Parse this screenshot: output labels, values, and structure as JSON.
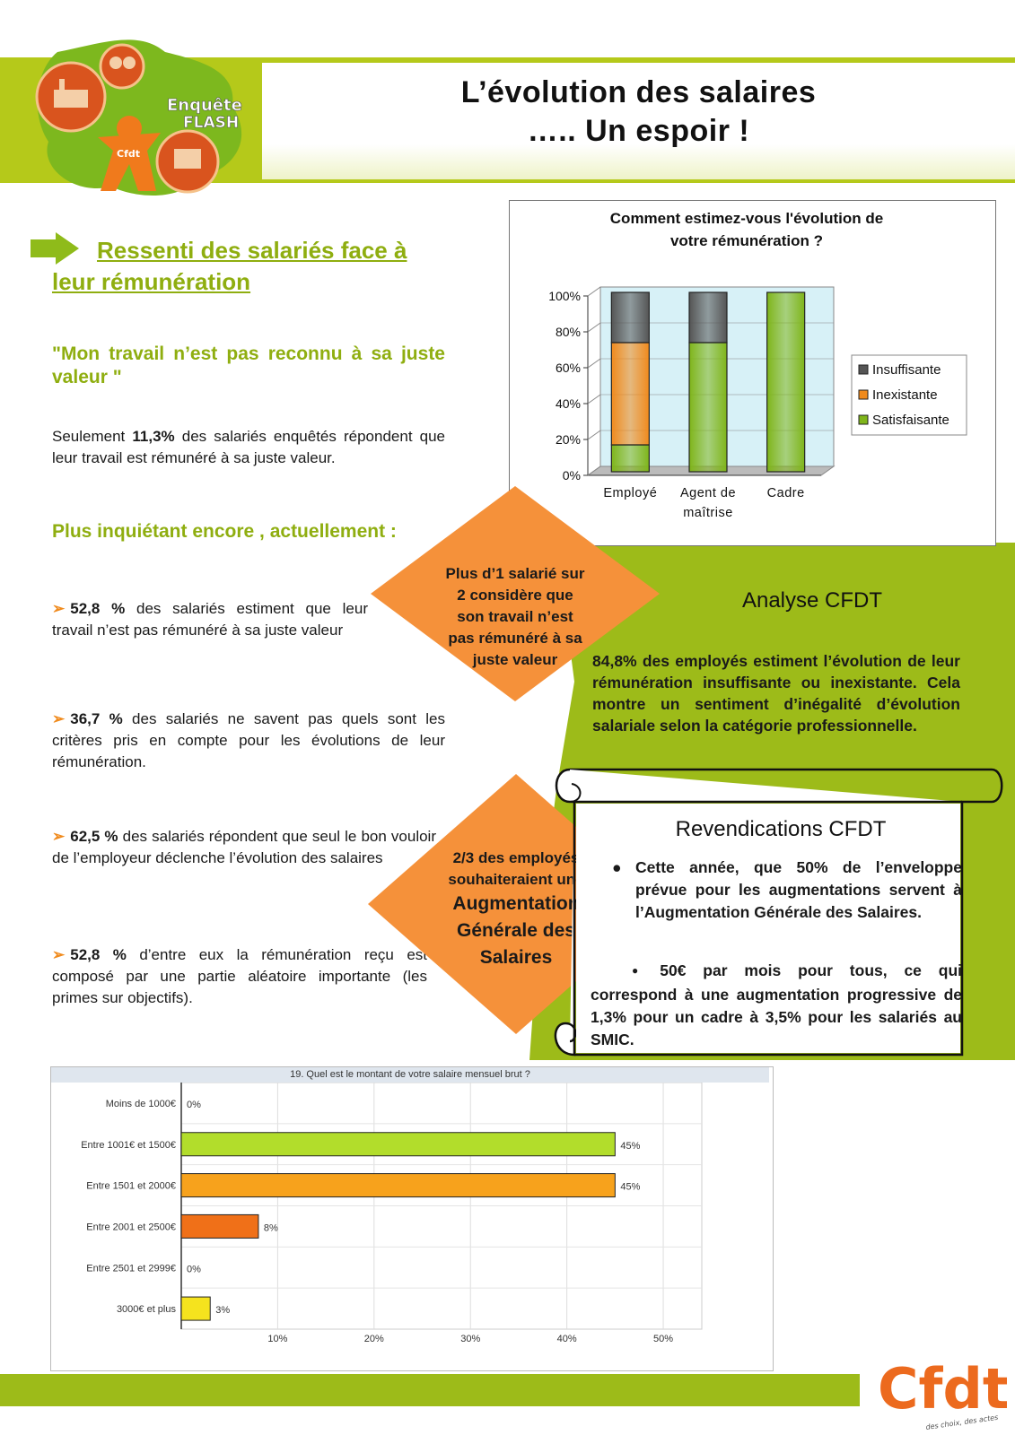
{
  "header": {
    "title_line1": "L’évolution des salaires",
    "title_line2": "….. Un espoir  !",
    "logo_text_top": "Enquête",
    "logo_text_bottom": "FLASH",
    "logo_small": "Cfdt"
  },
  "colors": {
    "brand_green": "#9dbb19",
    "text_green": "#8fae10",
    "orange": "#f5913a",
    "accent_orange": "#f08a1c"
  },
  "left": {
    "section_title": "Ressenti des salariés face à leur rémunération",
    "quote": "\"Mon travail n’est pas reconnu à sa juste valeur \"",
    "intro_pre": "Seulement ",
    "intro_bold": "11,3%",
    "intro_post": " des salariés enquêtés répondent que leur travail est rémunéré à sa juste valeur.",
    "worry_title": "Plus inquiétant encore , actuellement :",
    "bullets": [
      {
        "value": "52,8 %",
        "text": " des salariés estiment que leur travail n’est pas rémunéré à sa juste valeur"
      },
      {
        "value": "36,7 %",
        "text": " des salariés ne savent pas quels sont les critères pris en compte pour les évolutions de leur rémunération."
      },
      {
        "value": "62,5 %",
        "text": " des salariés répondent que seul le bon vouloir de l’employeur déclenche l’évolution des salaires"
      },
      {
        "value": "52,8 %",
        "text": " d’entre eux la rémunération reçu est composé par une partie aléatoire importante (les primes sur objectifs)."
      }
    ]
  },
  "diamonds": {
    "first": [
      "Plus d’1 salarié sur",
      "2 considère que",
      "son travail n’est",
      "pas rémunéré à sa",
      "juste valeur"
    ],
    "second": [
      "2/3 des employés",
      "souhaiteraient une",
      "Augmentation",
      "Générale des",
      "Salaires"
    ]
  },
  "analysis": {
    "title": "Analyse CFDT",
    "body": "84,8% des employés estiment l’évolution de leur rémunération insuffisante ou inexistante. Cela montre un sentiment d’inégalité d’évolution salariale selon la catégorie professionnelle."
  },
  "claims": {
    "title": "Revendications CFDT",
    "item1": "Cette année, que 50% de  l’enveloppe prévue pour les augmentations servent à l’Augmentation Générale des Salaires.",
    "item2": "50€ par mois pour tous, ce qui correspond à une augmentation progressive de 1,3% pour un cadre à 3,5% pour les salariés  au SMIC."
  },
  "chart_data": [
    {
      "type": "bar",
      "stacked": true,
      "title": "Comment estimez-vous l'évolution de votre rémunération ?",
      "categories": [
        "Employé",
        "Agent de maîtrise",
        "Cadre"
      ],
      "category_lines": [
        [
          "Employé"
        ],
        [
          "Agent de",
          "maîtrise"
        ],
        [
          "Cadre"
        ]
      ],
      "series": [
        {
          "name": "Satisfaisante",
          "values": [
            15,
            72,
            100
          ],
          "color": "#7fb51a"
        },
        {
          "name": "Inexistante",
          "values": [
            57,
            0,
            0
          ],
          "color": "#f08a1c"
        },
        {
          "name": "Insuffisante",
          "values": [
            28,
            28,
            0
          ],
          "color": "#555555"
        }
      ],
      "legend_order": [
        "Insuffisante",
        "Inexistante",
        "Satisfaisante"
      ],
      "ylim": [
        0,
        100
      ],
      "yticks": [
        "0%",
        "20%",
        "40%",
        "60%",
        "80%",
        "100%"
      ],
      "legend": "right"
    },
    {
      "type": "bar",
      "orientation": "horizontal",
      "title": "19. Quel est le montant de votre salaire mensuel brut ?",
      "categories": [
        "Moins de 1000€",
        "Entre 1001€ et 1500€",
        "Entre 1501 et 2000€",
        "Entre 2001 et 2500€",
        "Entre 2501 et 2999€",
        "3000€ et plus"
      ],
      "values": [
        0,
        45,
        45,
        8,
        0,
        3
      ],
      "labels": [
        "0%",
        "45%",
        "45%",
        "8%",
        "0%",
        "3%"
      ],
      "colors": [
        "#7fb51a",
        "#b2dd2b",
        "#f7a21c",
        "#f07018",
        "#e0e0e0",
        "#f5e31e"
      ],
      "xlim": [
        0,
        54
      ],
      "xticks": [
        "10%",
        "20%",
        "30%",
        "40%",
        "50%"
      ],
      "grid": true
    }
  ],
  "footer": {
    "logo": "Cfdt",
    "tagline": "des choix, des actes"
  }
}
